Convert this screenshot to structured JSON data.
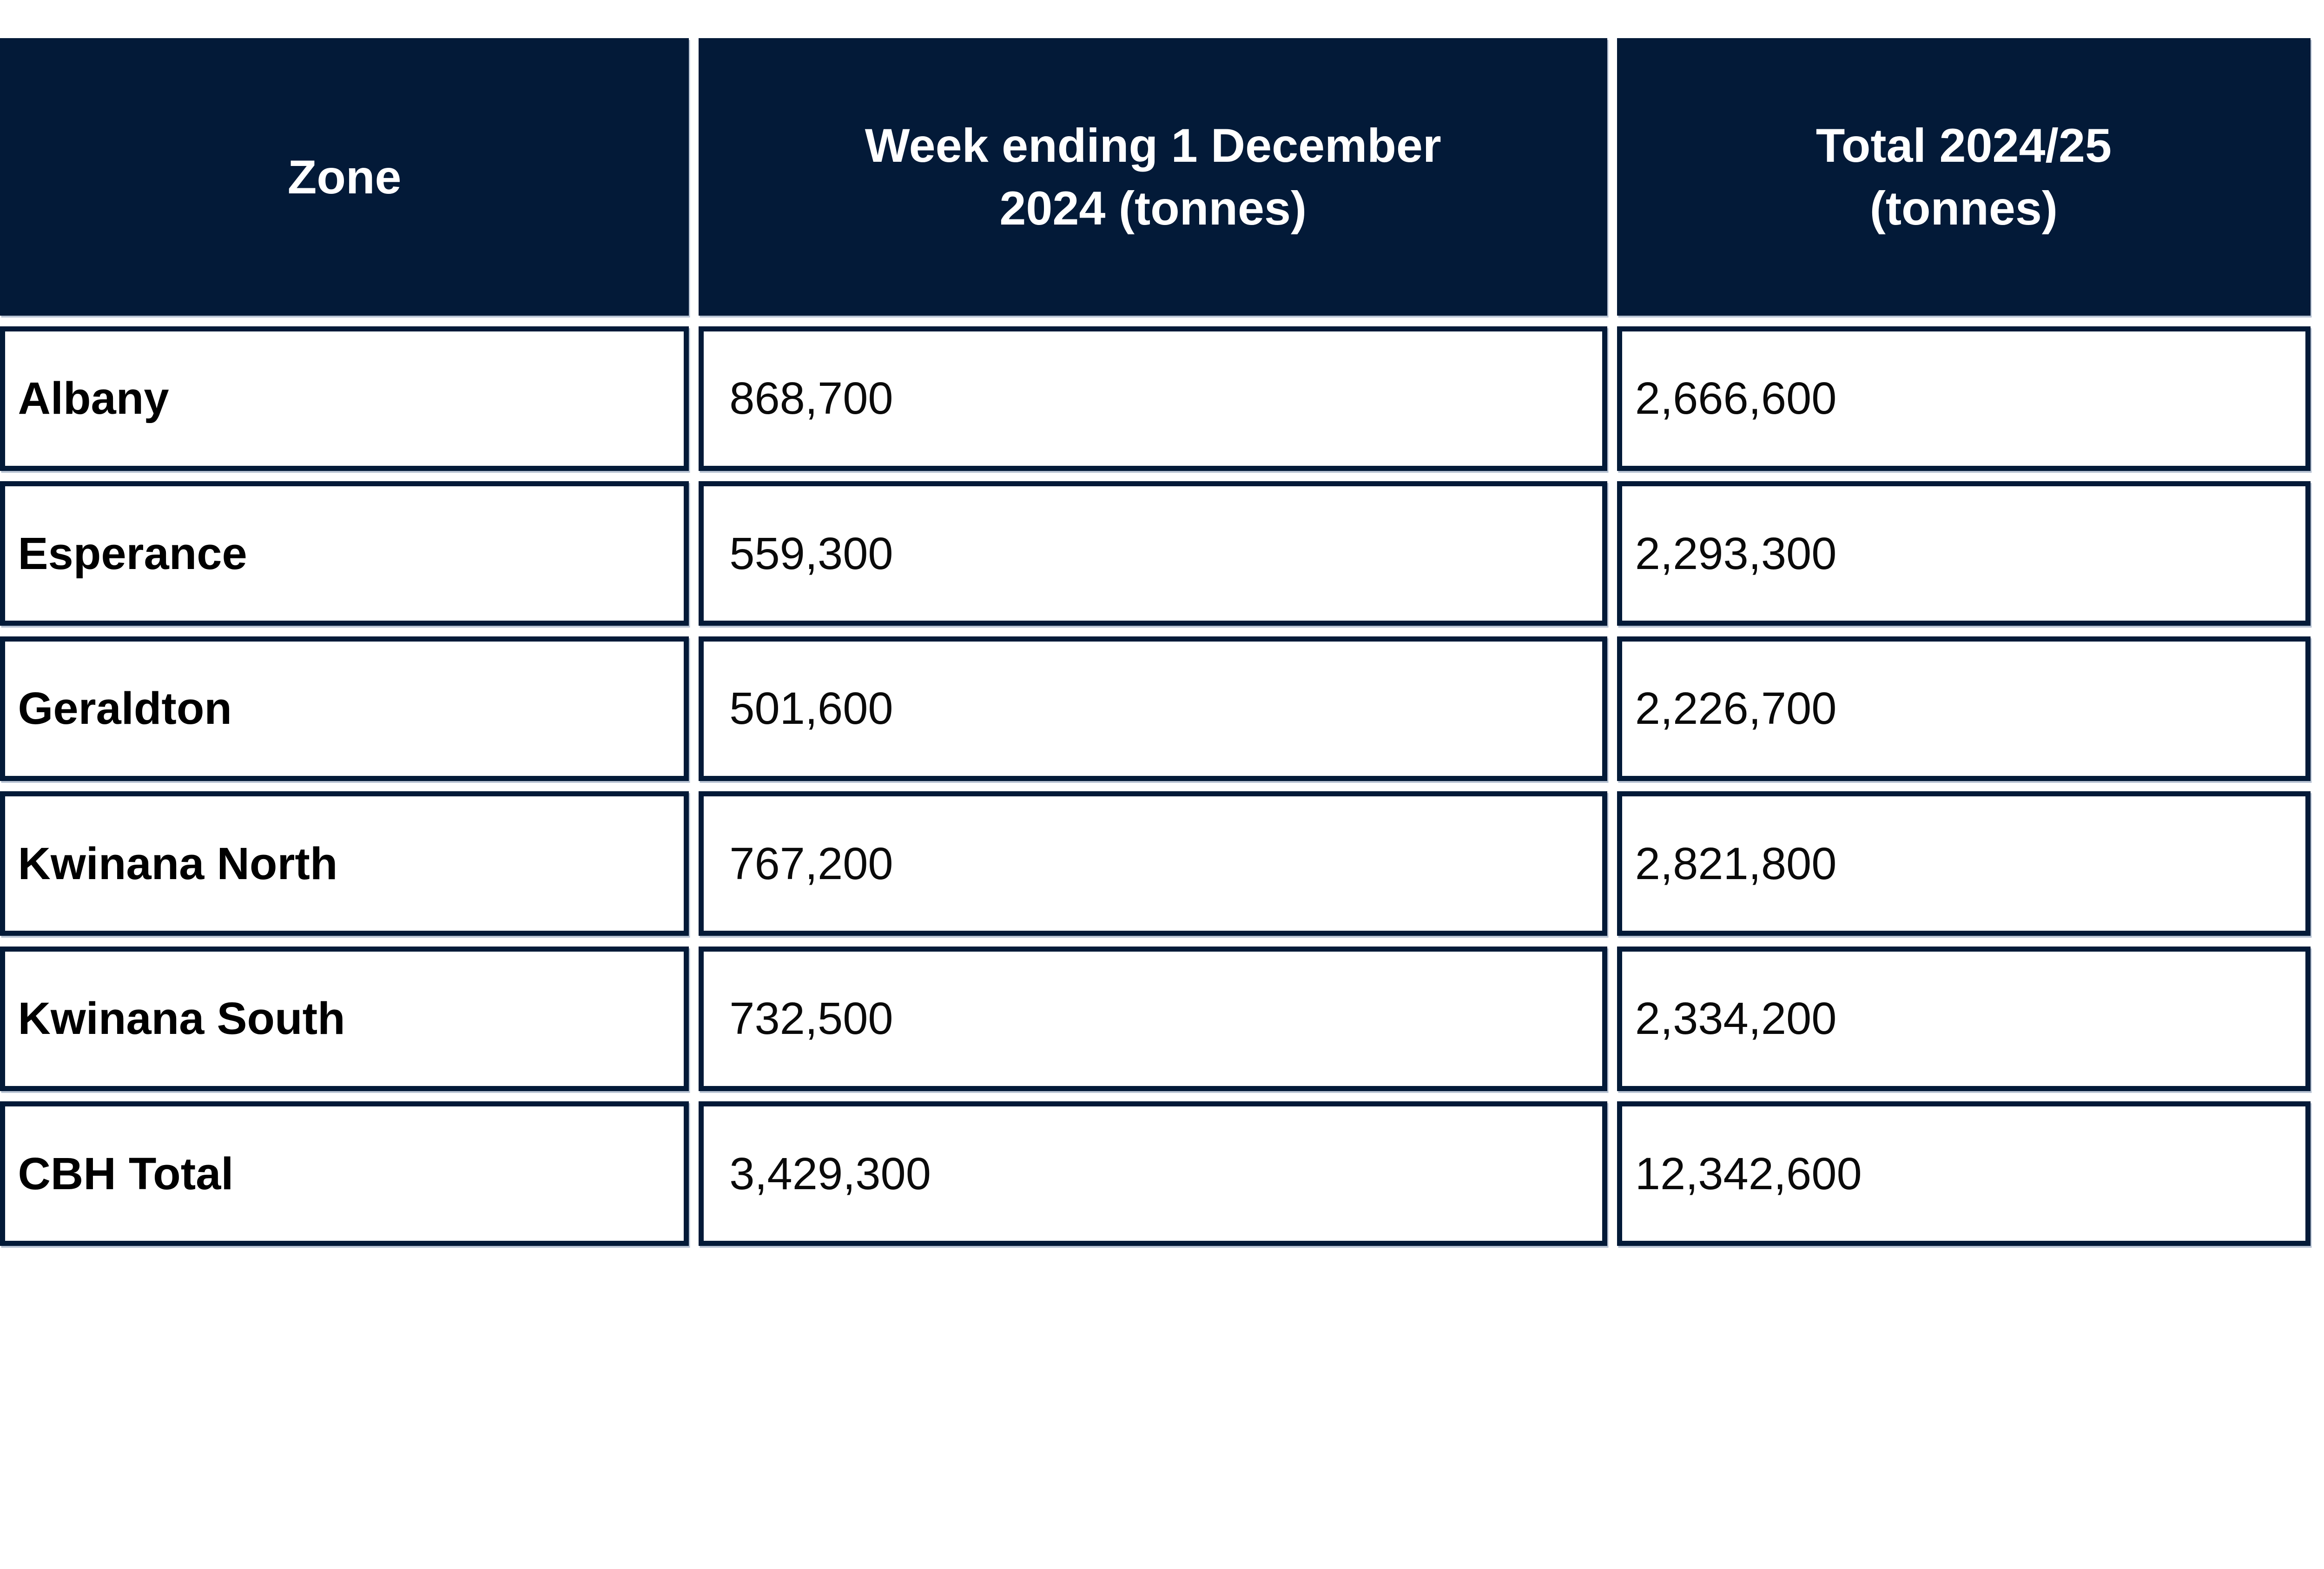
{
  "colors": {
    "header_bg": "#031a38",
    "header_text": "#ffffff",
    "cell_border": "#031a38",
    "cell_bg": "#ffffff",
    "zone_text": "#000000",
    "value_text": "#0a0a0a",
    "accent_line": "#adbacd"
  },
  "table": {
    "columns": [
      {
        "label": "Zone"
      },
      {
        "label": "Week ending 1 December 2024 (tonnes)"
      },
      {
        "label": "Total 2024/25 (tonnes)"
      }
    ],
    "rows": [
      {
        "zone": "Albany",
        "week_ending": "868,700",
        "total": "2,666,600"
      },
      {
        "zone": "Esperance",
        "week_ending": "559,300",
        "total": "2,293,300"
      },
      {
        "zone": "Geraldton",
        "week_ending": "501,600",
        "total": "2,226,700"
      },
      {
        "zone": "Kwinana North",
        "week_ending": "767,200",
        "total": "2,821,800"
      },
      {
        "zone": "Kwinana South",
        "week_ending": "732,500",
        "total": "2,334,200"
      },
      {
        "zone": "CBH Total",
        "week_ending": "3,429,300",
        "total": "12,342,600"
      }
    ]
  },
  "chart_data": {
    "type": "table",
    "title": "",
    "columns": [
      "Zone",
      "Week ending 1 December 2024 (tonnes)",
      "Total 2024/25 (tonnes)"
    ],
    "rows": [
      [
        "Albany",
        868700,
        2666600
      ],
      [
        "Esperance",
        559300,
        2293300
      ],
      [
        "Geraldton",
        501600,
        2226700
      ],
      [
        "Kwinana North",
        767200,
        2821800
      ],
      [
        "Kwinana South",
        732500,
        2334200
      ],
      [
        "CBH Total",
        3429300,
        12342600
      ]
    ]
  }
}
